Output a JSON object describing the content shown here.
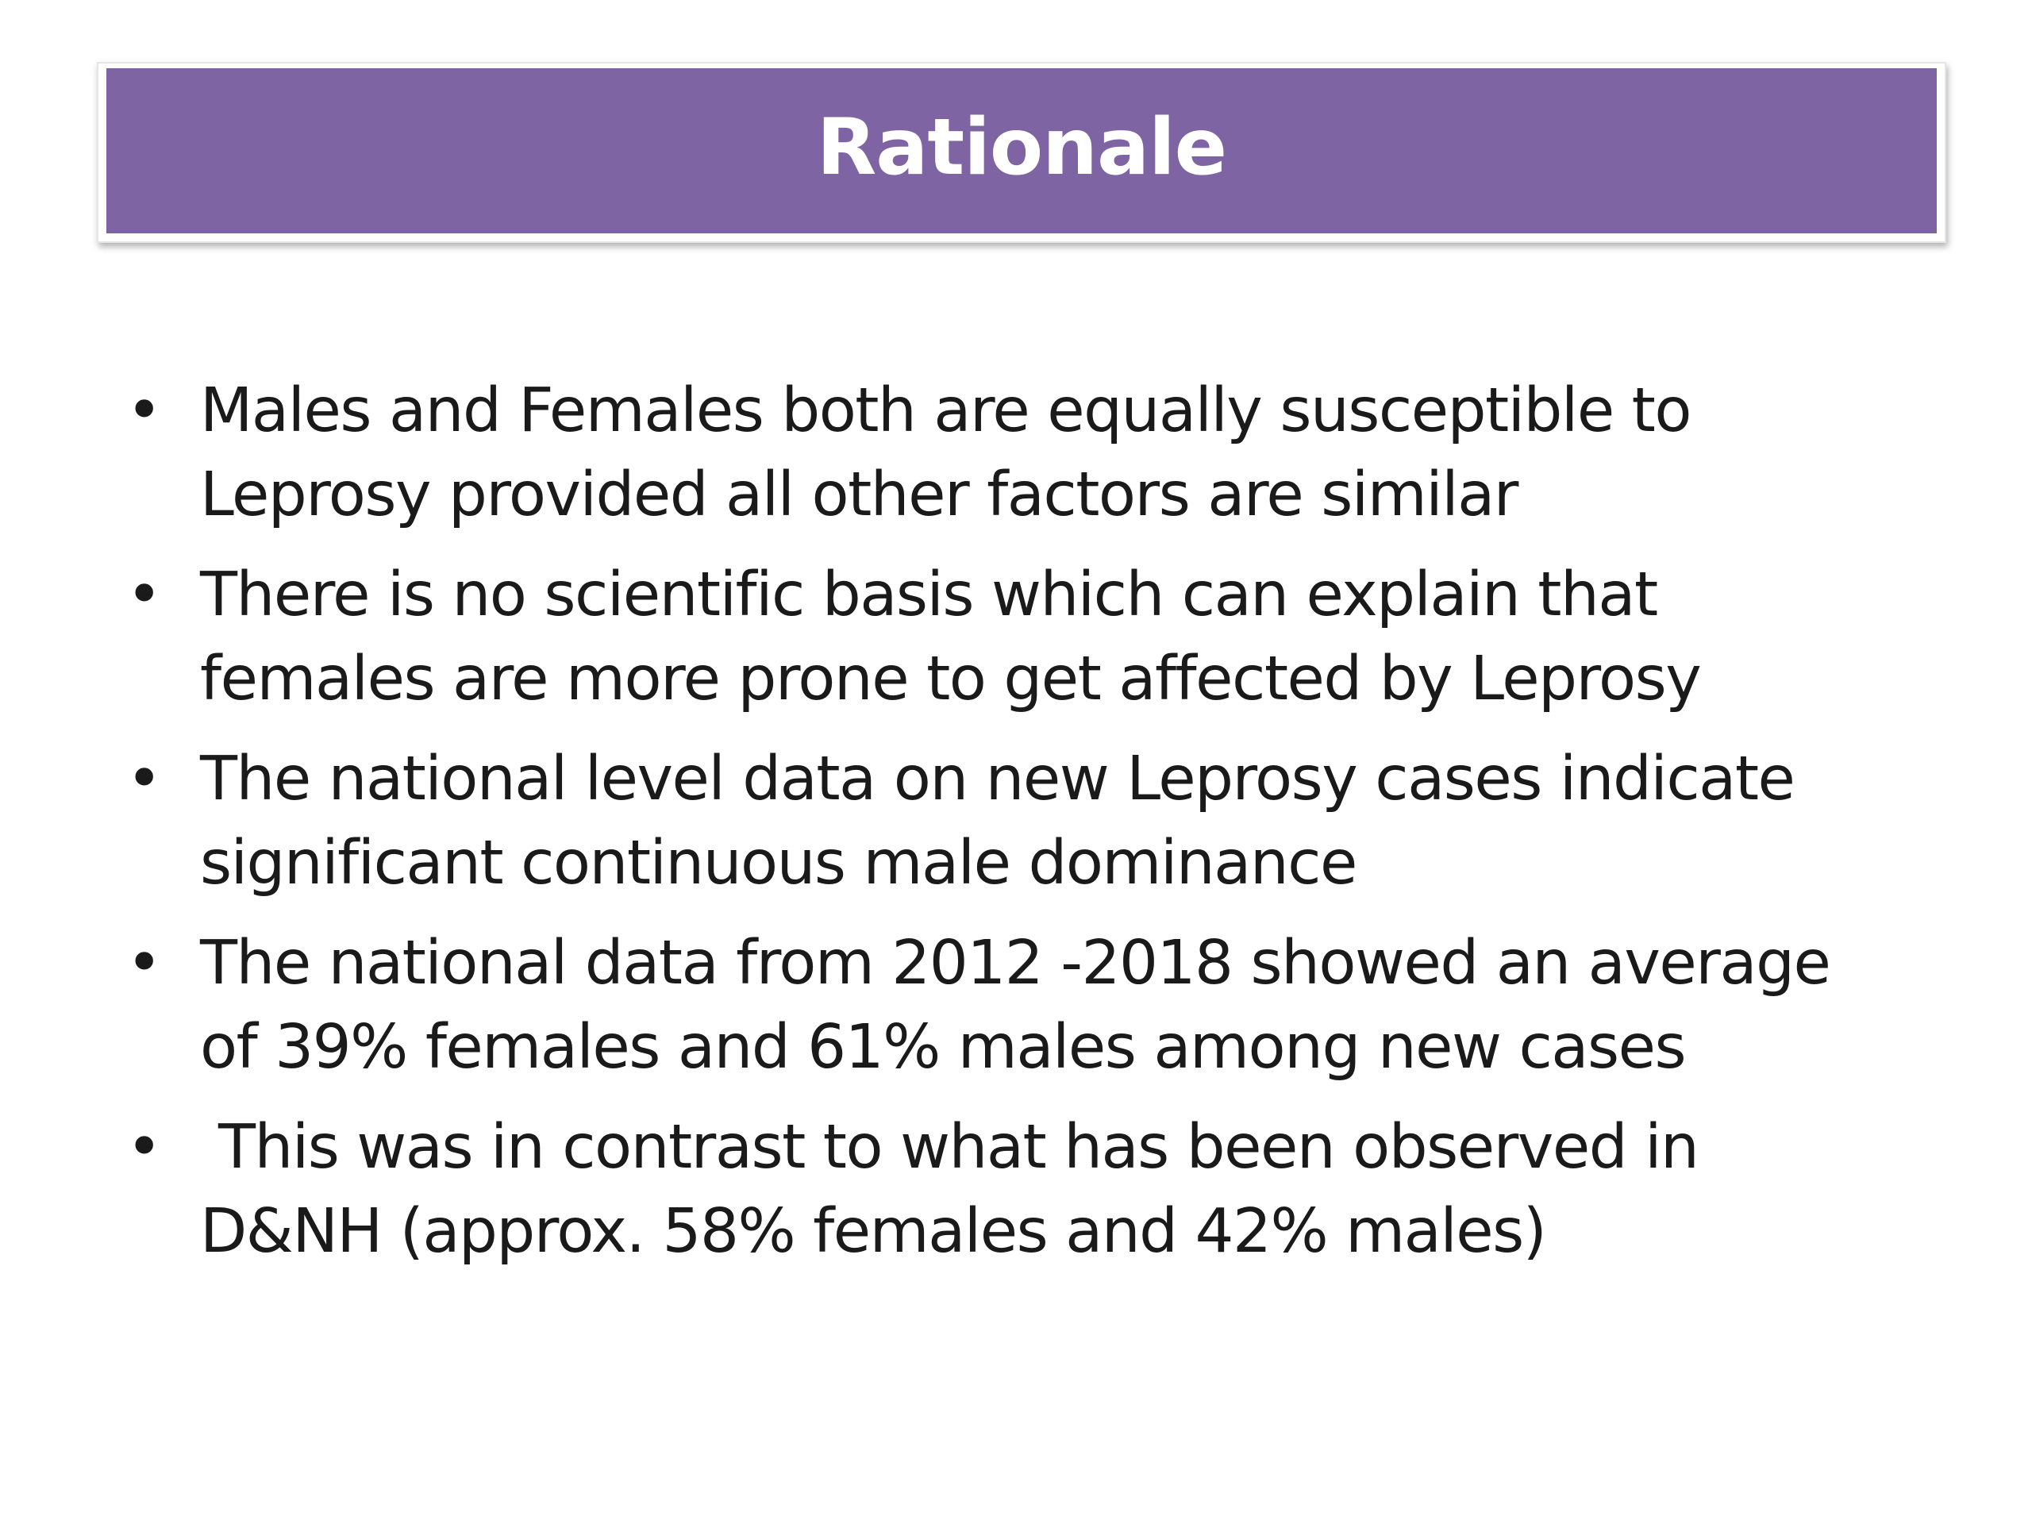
{
  "slide": {
    "title": "Rationale",
    "bullet_symbol": "•",
    "bullets": [
      {
        "line1": "Males and Females both are equally susceptible to",
        "line2": "Leprosy provided all other factors are similar"
      },
      {
        "line1": "There is no scientific basis which can explain that",
        "line2": "females are more prone to get affected by Leprosy"
      },
      {
        "line1": "The national level data on new Leprosy cases indicate",
        "line2": "significant continuous male dominance"
      },
      {
        "line1": "The national data from 2012 -2018 showed an average",
        "line2": "of 39% females and 61% males among new cases"
      },
      {
        "line1": " This was in contrast to what has been observed in",
        "line2": "D&NH (approx. 58% females and 42% males)"
      }
    ]
  },
  "colors": {
    "title_bar": "#7f64a3",
    "title_text": "#ffffff",
    "body_text": "#1a1a1a"
  }
}
